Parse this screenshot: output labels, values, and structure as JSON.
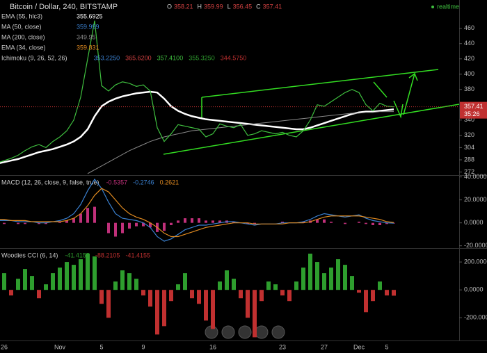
{
  "chart_data": [
    {
      "type": "line",
      "title": "Bitcoin / Dollar, 240, BITSTAMP",
      "ohlc": [
        {
          "label": "O",
          "value": 358.21
        },
        {
          "label": "H",
          "value": 359.99
        },
        {
          "label": "L",
          "value": 356.45
        },
        {
          "label": "C",
          "value": 357.41
        }
      ],
      "realtime": "realtime",
      "last_price": 357.41,
      "countdown": "35:26",
      "categories": [
        null,
        "26",
        null,
        null,
        null,
        null,
        null,
        null,
        null,
        "Nov",
        null,
        null,
        null,
        null,
        null,
        "5",
        null,
        null,
        null,
        null,
        null,
        "9",
        null,
        null,
        null,
        null,
        null,
        null,
        null,
        null,
        null,
        "16",
        null,
        null,
        null,
        null,
        null,
        null,
        null,
        null,
        null,
        "23",
        null,
        null,
        null,
        null,
        null,
        "27",
        null,
        null,
        null,
        null,
        "Dec",
        null,
        null,
        null,
        "5",
        null
      ],
      "values": [
        284,
        287,
        290,
        294,
        300,
        305,
        308,
        304,
        312,
        318,
        326,
        340,
        370,
        420,
        470,
        385,
        378,
        386,
        390,
        388,
        384,
        386,
        378,
        330,
        312,
        322,
        334,
        332,
        330,
        328,
        318,
        322,
        335,
        332,
        330,
        334,
        320,
        322,
        326,
        324,
        322,
        324,
        320,
        318,
        326,
        340,
        360,
        358,
        364,
        370,
        376,
        380,
        376,
        360,
        352,
        362,
        358,
        357.41
      ],
      "color": "#3fbf3f",
      "series": [
        {
          "name": "EMA (55, hlc3)",
          "color": "#ffffff",
          "readout": "355.6925",
          "values": [
            283,
            285,
            287,
            289,
            292,
            295,
            298,
            300,
            302,
            305,
            308,
            312,
            318,
            328,
            345,
            358,
            364,
            368,
            371,
            373,
            375,
            376,
            377,
            376,
            368,
            358,
            352,
            348,
            345,
            343,
            341,
            340,
            339,
            338,
            337,
            336,
            335,
            334,
            333,
            332,
            331,
            330,
            329,
            328,
            328,
            330,
            333,
            336,
            339,
            342,
            345,
            348,
            350,
            351,
            351,
            352,
            353,
            354
          ]
        },
        {
          "name": "MA (200, close)",
          "color": "#8a8a8a",
          "readout": "349.95",
          "values": [
            null,
            null,
            null,
            null,
            null,
            null,
            null,
            null,
            null,
            null,
            null,
            null,
            null,
            270,
            275,
            280,
            285,
            290,
            295,
            300,
            304,
            308,
            312,
            315,
            318,
            320,
            322,
            324,
            326,
            327,
            328,
            329,
            330,
            331,
            332,
            333,
            334,
            335,
            336,
            337,
            338,
            339,
            340,
            341,
            342,
            343,
            344,
            345,
            346,
            347,
            348,
            349,
            349,
            350,
            350,
            351,
            351,
            351
          ]
        }
      ],
      "indicators": [
        {
          "name": "MA (50, close)",
          "color": "#3a80d0",
          "readouts": [
            {
              "text": "359.999",
              "color": "#3a80d0"
            }
          ]
        },
        {
          "name": "EMA (34, close)",
          "color": "#e08a20",
          "readouts": [
            {
              "text": "359.831",
              "color": "#e08a20"
            }
          ]
        },
        {
          "name": "Ichimoku (9, 26, 52, 26)",
          "color": "#cccccc",
          "readouts": [
            {
              "text": "353.2250",
              "color": "#3a80d0"
            },
            {
              "text": "365.6200",
              "color": "#d04040"
            },
            {
              "text": "357.4100",
              "color": "#3fbf3f"
            },
            {
              "text": "355.3250",
              "color": "#2e9e2e"
            },
            {
              "text": "344.5750",
              "color": "#c03030"
            }
          ]
        }
      ],
      "ylim": [
        268,
        497
      ],
      "yticks": [
        272,
        288,
        304,
        320,
        340,
        380,
        400,
        420,
        440,
        460
      ],
      "grid": false
    },
    {
      "type": "line",
      "title": "MACD (12, 26, close, 9, false, true)",
      "series": [
        {
          "kind": "bar",
          "color": "#c0307a",
          "readout": "-0.5357",
          "values": [
            -1,
            -1,
            0,
            -1,
            -1,
            0,
            -1,
            -1,
            0,
            1,
            2,
            4,
            8,
            13,
            14,
            0,
            -9,
            -12,
            -9,
            -5,
            -3,
            -3,
            -4,
            -8,
            -7,
            -2,
            2,
            4,
            4,
            4,
            2,
            2,
            2,
            2,
            1,
            0,
            -1,
            -1,
            0,
            0,
            0,
            1,
            0,
            0,
            1,
            2,
            3,
            3,
            1,
            0,
            -1,
            0,
            1,
            -1,
            -2,
            -2,
            -1,
            -0.54
          ]
        },
        {
          "kind": "line",
          "color": "#3a80d0",
          "readout": "-0.2746",
          "values": [
            2,
            2,
            2,
            1,
            1,
            1,
            0,
            0,
            1,
            2,
            4,
            8,
            16,
            28,
            38,
            30,
            18,
            8,
            4,
            3,
            2,
            0,
            -4,
            -12,
            -16,
            -14,
            -10,
            -6,
            -4,
            -2,
            -2,
            -1,
            0,
            1,
            1,
            0,
            -1,
            -2,
            -1,
            -1,
            -1,
            0,
            0,
            0,
            1,
            3,
            6,
            8,
            7,
            6,
            5,
            6,
            7,
            4,
            2,
            1,
            0,
            -0.27
          ]
        },
        {
          "kind": "line",
          "color": "#e08a20",
          "readout": "0.2621",
          "values": [
            3,
            3,
            2,
            2,
            2,
            1,
            1,
            1,
            1,
            1,
            2,
            4,
            8,
            15,
            24,
            30,
            27,
            20,
            13,
            8,
            5,
            3,
            0,
            -4,
            -9,
            -12,
            -12,
            -10,
            -8,
            -6,
            -4,
            -3,
            -2,
            -1,
            0,
            0,
            0,
            -1,
            -1,
            -1,
            -1,
            -1,
            0,
            0,
            0,
            1,
            3,
            5,
            6,
            6,
            6,
            6,
            6,
            5,
            4,
            3,
            1,
            0.26
          ]
        }
      ],
      "ylim": [
        -22,
        41
      ],
      "yticks": [
        {
          "value": 40,
          "label": "40.0000"
        },
        {
          "value": 20,
          "label": "20.0000"
        },
        {
          "value": 0,
          "label": "0.0000"
        },
        {
          "value": -20,
          "label": "-20.0000"
        }
      ]
    },
    {
      "type": "bar",
      "title": "Woodies CCI (6, 14)",
      "readouts": [
        {
          "text": "-41.4155",
          "color": "#2e9e2e"
        },
        {
          "text": "-88.2105",
          "color": "#c03030"
        },
        {
          "text": "-41.4155",
          "color": "#c03030"
        }
      ],
      "colors": {
        "up": "#2e9e2e",
        "down": "#c03030"
      },
      "values": [
        60,
        120,
        -40,
        80,
        150,
        100,
        -60,
        40,
        120,
        160,
        200,
        180,
        220,
        260,
        240,
        -100,
        -200,
        60,
        140,
        120,
        80,
        -40,
        -120,
        -320,
        -260,
        -80,
        40,
        120,
        -60,
        -100,
        -220,
        -280,
        60,
        140,
        80,
        -60,
        -200,
        -340,
        -80,
        60,
        40,
        -40,
        -80,
        60,
        160,
        260,
        200,
        120,
        160,
        220,
        180,
        100,
        -20,
        -160,
        -80,
        60,
        -40,
        -41.4155
      ],
      "ylim": [
        -363,
        295
      ],
      "yticks": [
        {
          "value": 200,
          "label": "200.0000"
        },
        {
          "value": 0,
          "label": "0.0000"
        },
        {
          "value": -200,
          "label": "-200.0000"
        }
      ]
    }
  ]
}
